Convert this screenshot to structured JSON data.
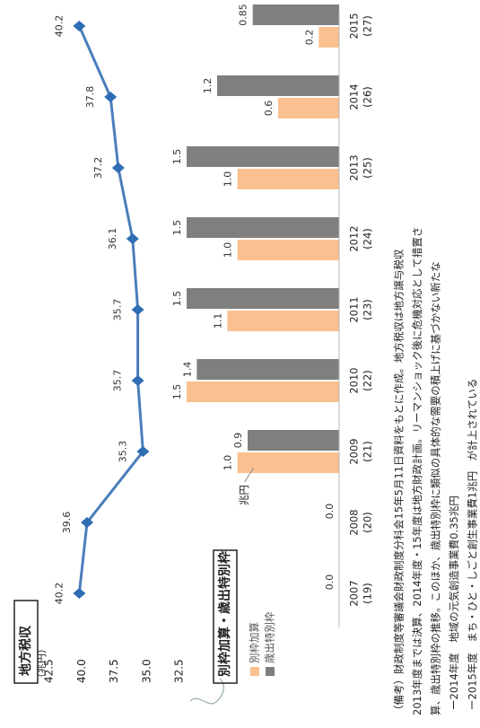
{
  "chart_data": [
    {
      "type": "line",
      "title": "地方税収",
      "unit": "（兆円）",
      "values": [
        40.2,
        39.6,
        35.3,
        35.7,
        35.7,
        36.1,
        37.2,
        37.8,
        40.2
      ],
      "color": "#4a7ebb",
      "marker_color": "#2e6db4",
      "ylim": [
        32.5,
        42.5
      ],
      "yticks": [
        32.5,
        {
          "value": 35,
          "label": "35.0"
        },
        37.5,
        {
          "value": 40,
          "label": "40.0"
        },
        42.5
      ]
    },
    {
      "type": "bar",
      "title": "別枠加算・歳出特別枠",
      "categories": [
        "2007",
        "2008",
        "2009",
        "2010",
        "2011",
        "2012",
        "2013",
        "2014",
        "2015"
      ],
      "fiscal_labels": [
        "(19)",
        "(20)",
        "(21)",
        "(22)",
        "(23)",
        "(24)",
        "(25)",
        "(26)",
        "(27)"
      ],
      "series": [
        {
          "name": "別枠加算",
          "color": "#fac090",
          "values": [
            null,
            null,
            1.0,
            1.5,
            1.1,
            1.0,
            1.0,
            0.6,
            0.2
          ],
          "value_labels": [
            null,
            null,
            "1.0",
            "1.5",
            "1.1",
            "1.0",
            "1.0",
            "0.6",
            "0.2"
          ]
        },
        {
          "name": "歳出特別枠",
          "color": "#7f7f7f",
          "values": [
            0,
            0,
            0.9,
            1.4,
            1.5,
            1.5,
            1.5,
            1.2,
            0.85
          ],
          "value_labels": [
            "0.0",
            "0.0",
            "0.9",
            "1.4",
            "1.5",
            "1.5",
            "1.5",
            "1.2",
            "0.85"
          ]
        }
      ],
      "annotation": "兆円",
      "ylim": [
        0,
        1.5
      ]
    }
  ],
  "notes": [
    "（備考）財政制度等審議会財政制度分科会15年5月11日資料をもとに作成。地方税収は地方譲与税収",
    "2013年度までは決算、2014年度・15年度は地方財政計画。リーマンショック後に危機対応として措置さ",
    "算、歳出特別枠の推移。このほか、歳出特別枠に類似の具体的な需要の積上げに基づかない新たな",
    "ー2014年度　地域の元気創造事業費0.35兆円",
    "ー2015年度　まち・ひと・しごと創生事業費1兆円　が計上されている"
  ]
}
